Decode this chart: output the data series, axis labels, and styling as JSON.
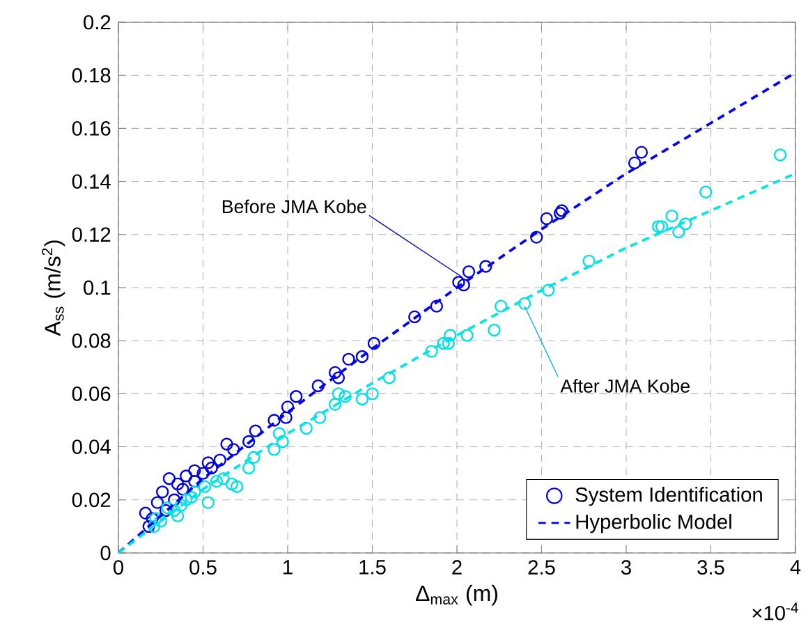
{
  "chart_data": {
    "type": "scatter",
    "xlabel": "Δ$_{max}$ (m)",
    "ylabel": "A$_{ss}$ (m/s$^{2}$)",
    "xlim": [
      0,
      4
    ],
    "ylim": [
      0,
      0.2
    ],
    "xticks": [
      0,
      0.5,
      1,
      1.5,
      2,
      2.5,
      3,
      3.5,
      4
    ],
    "yticks": [
      0,
      0.02,
      0.04,
      0.06,
      0.08,
      0.1,
      0.12,
      0.14,
      0.16,
      0.18,
      0.2
    ],
    "grid": true,
    "legend": "bottom right",
    "marker": "circle",
    "annotations": [
      "×10$^{-4}$",
      {
        "text": "Before JMA Kobe",
        "x": 2.03,
        "y": 0.104
      },
      {
        "text": "After JMA Kobe",
        "x": 2.4,
        "y": 0.093
      }
    ],
    "series": [
      {
        "name": "System Identification",
        "color": "#0000e0",
        "x": [
          3.05,
          3.09,
          2.62,
          2.61,
          2.53,
          2.47,
          2.17,
          2.07,
          2.01,
          2.04,
          1.88,
          1.75,
          1.51,
          1.44,
          1.36,
          1.28,
          1.3,
          1.18,
          1.05,
          1.0,
          0.99,
          0.92,
          0.81,
          0.77,
          0.64,
          0.68,
          0.6,
          0.53,
          0.45,
          0.4,
          0.3,
          0.35,
          0.23,
          0.16,
          0.18,
          0.26,
          0.38,
          0.45,
          0.5,
          0.33,
          0.42,
          0.55,
          0.28,
          0.2
        ],
        "values": [
          0.147,
          0.151,
          0.129,
          0.128,
          0.126,
          0.119,
          0.108,
          0.106,
          0.102,
          0.101,
          0.093,
          0.089,
          0.079,
          0.074,
          0.073,
          0.068,
          0.066,
          0.063,
          0.059,
          0.055,
          0.051,
          0.05,
          0.046,
          0.042,
          0.041,
          0.039,
          0.035,
          0.034,
          0.031,
          0.029,
          0.028,
          0.026,
          0.019,
          0.015,
          0.01,
          0.023,
          0.024,
          0.027,
          0.03,
          0.02,
          null,
          0.032,
          0.016,
          0.013
        ]
      },
      {
        "color": "#00e0e8",
        "x": [
          3.91,
          3.47,
          3.35,
          3.27,
          3.31,
          3.19,
          3.21,
          2.78,
          2.54,
          2.4,
          2.26,
          2.22,
          2.06,
          1.96,
          1.95,
          1.92,
          1.85,
          1.6,
          1.5,
          1.44,
          1.34,
          1.28,
          1.3,
          1.19,
          1.11,
          0.95,
          0.97,
          0.92,
          0.8,
          0.77,
          0.7,
          0.62,
          0.51,
          0.43,
          0.37,
          0.35,
          0.29,
          0.22,
          0.21,
          0.53,
          0.67,
          0.4,
          0.45,
          0.33,
          0.58,
          0.25
        ],
        "values": [
          0.15,
          0.136,
          0.124,
          0.127,
          0.121,
          0.123,
          0.123,
          0.11,
          0.099,
          0.094,
          0.093,
          0.084,
          0.082,
          0.082,
          0.079,
          0.079,
          0.076,
          0.066,
          0.06,
          0.058,
          0.059,
          0.056,
          0.06,
          0.051,
          0.047,
          0.045,
          0.042,
          0.039,
          0.036,
          0.032,
          0.025,
          0.028,
          0.025,
          0.021,
          0.018,
          0.014,
          0.017,
          0.013,
          0.01,
          0.019,
          0.026,
          0.02,
          0.023,
          0.016,
          0.027,
          0.012
        ]
      },
      {
        "type": "line",
        "name": "Hyperbolic Model",
        "line_style": "dashed",
        "marker": "none",
        "color": "#0000ff",
        "x": [
          0,
          0.5,
          1,
          1.5,
          2,
          2.5,
          3,
          3.5,
          4
        ],
        "values": [
          0,
          0.028,
          0.053,
          0.077,
          0.1,
          0.122,
          0.143,
          0.162,
          0.181
        ]
      },
      {
        "type": "line",
        "line_style": "dashed",
        "marker": "none",
        "color": "#00e5e5",
        "x": [
          0,
          0.5,
          1,
          1.5,
          2,
          2.5,
          3,
          3.5,
          4
        ],
        "values": [
          0,
          0.024,
          0.045,
          0.064,
          0.082,
          0.099,
          0.115,
          0.129,
          0.143
        ]
      }
    ]
  }
}
